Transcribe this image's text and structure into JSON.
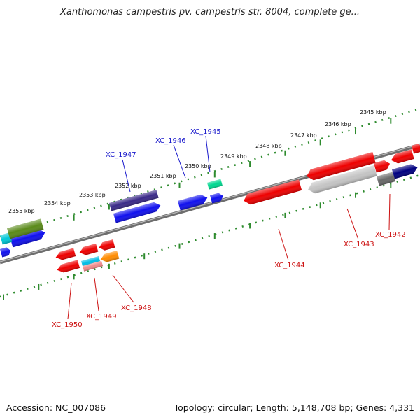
{
  "title": "Xanthomonas campestris pv. campestris str. 8004, complete ge...",
  "footer": {
    "accession": "Accession: NC_007086",
    "topology": "Topology: circular; Length: 5,148,708 bp; Genes: 4,331"
  },
  "colors": {
    "backbone": "#7a7a7a",
    "tick": "#2e8b2e",
    "label_forward": "#1a1acc",
    "label_reverse": "#cc1111"
  },
  "ruler": [
    {
      "label": "2345 kbp"
    },
    {
      "label": "2346 kbp"
    },
    {
      "label": "2347 kbp"
    },
    {
      "label": "2348 kbp"
    },
    {
      "label": "2349 kbp"
    },
    {
      "label": "2350 kbp"
    },
    {
      "label": "2351 kbp"
    },
    {
      "label": "2352 kbp"
    },
    {
      "label": "2353 kbp"
    },
    {
      "label": "2354 kbp"
    },
    {
      "label": "2355 kbp"
    }
  ],
  "genes": [
    {
      "label": "XC_1942"
    },
    {
      "label": "XC_1943"
    },
    {
      "label": "XC_1944"
    },
    {
      "label": "XC_1945"
    },
    {
      "label": "XC_1946"
    },
    {
      "label": "XC_1947"
    },
    {
      "label": "XC_1948"
    },
    {
      "label": "XC_1949"
    },
    {
      "label": "XC_1950"
    }
  ]
}
